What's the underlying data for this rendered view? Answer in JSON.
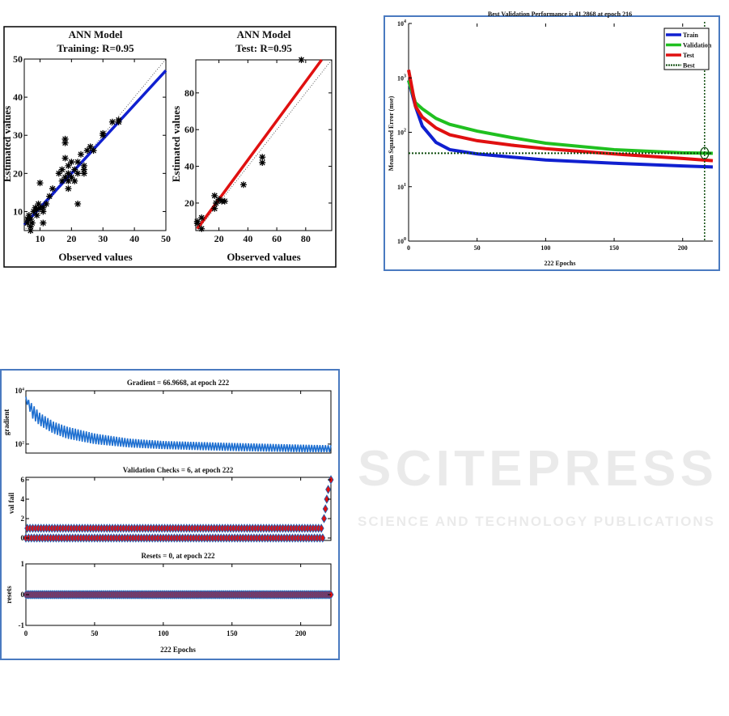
{
  "watermark": {
    "line1": "SCITEPRESS",
    "line2": "SCIENCE AND TECHNOLOGY PUBLICATIONS"
  },
  "colors": {
    "train": "#1020d0",
    "validation": "#20c020",
    "test": "#e01010",
    "best": "#0a4a0a",
    "gradient": "#1e6fd0",
    "marker_fill": "#e01010",
    "marker_edge": "#1a5fb4",
    "frame_blue": "#4a7ac0"
  },
  "chart_data": [
    {
      "type": "scatter",
      "title": "ANN Model",
      "subtitle": "Training: R=0.95",
      "xlabel": "Observed values",
      "ylabel": "Estimated values",
      "xlim": [
        5,
        50
      ],
      "ylim": [
        5,
        50
      ],
      "xticks": [
        "10",
        "20",
        "30",
        "40",
        "50"
      ],
      "yticks": [
        "10",
        "20",
        "30",
        "40",
        "50"
      ],
      "xtick_values": [
        10,
        20,
        30,
        40,
        50
      ],
      "ytick_values": [
        10,
        20,
        30,
        40,
        50
      ],
      "fit_line": [
        [
          5,
          6.5
        ],
        [
          50,
          47
        ]
      ],
      "points": [
        [
          6,
          7
        ],
        [
          6,
          8
        ],
        [
          6.5,
          9
        ],
        [
          7,
          6
        ],
        [
          7,
          5
        ],
        [
          7,
          8
        ],
        [
          7.5,
          7
        ],
        [
          8,
          10
        ],
        [
          8.5,
          11
        ],
        [
          9,
          10.5
        ],
        [
          9,
          9
        ],
        [
          9.5,
          12
        ],
        [
          10,
          11
        ],
        [
          10,
          17.5
        ],
        [
          11,
          10
        ],
        [
          11,
          11
        ],
        [
          11,
          7
        ],
        [
          12,
          12
        ],
        [
          13,
          14
        ],
        [
          14,
          16
        ],
        [
          16,
          20
        ],
        [
          17,
          21
        ],
        [
          17,
          18
        ],
        [
          18,
          19
        ],
        [
          18,
          28
        ],
        [
          18,
          29
        ],
        [
          18,
          24
        ],
        [
          19,
          16
        ],
        [
          19,
          20
        ],
        [
          19,
          18
        ],
        [
          19,
          22
        ],
        [
          20,
          19
        ],
        [
          20,
          23
        ],
        [
          21,
          21
        ],
        [
          21,
          18
        ],
        [
          22,
          12
        ],
        [
          22,
          23
        ],
        [
          22,
          20
        ],
        [
          23,
          25
        ],
        [
          24,
          22
        ],
        [
          24,
          21
        ],
        [
          24,
          20
        ],
        [
          25,
          26
        ],
        [
          26,
          27
        ],
        [
          27,
          26
        ],
        [
          30,
          30
        ],
        [
          30,
          30.5
        ],
        [
          33,
          33.5
        ],
        [
          35,
          33.5
        ],
        [
          35,
          34
        ]
      ],
      "marker": "asterisk"
    },
    {
      "type": "scatter",
      "title": "ANN Model",
      "subtitle": "Test: R=0.95",
      "xlabel": "Observed values",
      "ylabel": "Estimated values",
      "xlim": [
        4,
        98
      ],
      "ylim": [
        5,
        98
      ],
      "xticks": [
        "20",
        "40",
        "60",
        "80"
      ],
      "yticks": [
        "20",
        "40",
        "60",
        "80"
      ],
      "xtick_values": [
        20,
        40,
        60,
        80
      ],
      "ytick_values": [
        20,
        40,
        60,
        80
      ],
      "fit_line": [
        [
          5,
          6
        ],
        [
          91,
          98
        ]
      ],
      "points": [
        [
          5,
          10
        ],
        [
          5,
          9
        ],
        [
          8,
          12
        ],
        [
          8,
          6
        ],
        [
          17,
          24
        ],
        [
          17,
          17
        ],
        [
          18,
          20
        ],
        [
          20,
          22
        ],
        [
          22,
          21
        ],
        [
          24,
          21
        ],
        [
          37,
          30
        ],
        [
          50,
          45
        ],
        [
          50,
          42
        ],
        [
          77,
          98
        ]
      ],
      "marker": "asterisk"
    },
    {
      "type": "line",
      "title": "Best Validation Performance is 41.2868 at epoch 216",
      "xlabel": "222 Epochs",
      "ylabel": "Mean Squared Error  (mse)",
      "yscale": "log",
      "xlim": [
        0,
        222
      ],
      "ylim": [
        1,
        10000
      ],
      "xticks": [
        "0",
        "50",
        "100",
        "150",
        "200"
      ],
      "xtick_values": [
        0,
        50,
        100,
        150,
        200
      ],
      "yticks": [
        {
          "base": "10",
          "exp": "0"
        },
        {
          "base": "10",
          "exp": "1"
        },
        {
          "base": "10",
          "exp": "2"
        },
        {
          "base": "10",
          "exp": "3"
        },
        {
          "base": "10",
          "exp": "4"
        }
      ],
      "ytick_values": [
        1,
        10,
        100,
        1000,
        10000
      ],
      "x": [
        0,
        5,
        10,
        20,
        30,
        50,
        75,
        100,
        150,
        200,
        222
      ],
      "series": [
        {
          "name": "Train",
          "values": [
            900,
            300,
            130,
            65,
            48,
            40,
            35,
            31,
            27,
            24,
            23
          ]
        },
        {
          "name": "Validation",
          "values": [
            900,
            350,
            270,
            180,
            140,
            105,
            80,
            63,
            48,
            42,
            41
          ]
        },
        {
          "name": "Test",
          "values": [
            1400,
            300,
            190,
            120,
            90,
            70,
            58,
            50,
            40,
            33,
            30
          ]
        }
      ],
      "best": {
        "name": "Best",
        "value": 41.2868,
        "epoch": 216
      },
      "legend": "top-right"
    },
    {
      "type": "line",
      "title": "Gradient = 66.9668, at epoch 222",
      "ylabel": "gradient",
      "yscale": "log",
      "xlim": [
        0,
        222
      ],
      "ylim": [
        46,
        10000
      ],
      "yticks": [
        {
          "base": "10",
          "exp": "2"
        },
        {
          "base": "10",
          "exp": "4"
        }
      ],
      "ytick_values": [
        100,
        10000
      ],
      "x": [
        0,
        5,
        10,
        20,
        30,
        50,
        75,
        100,
        150,
        200,
        222
      ],
      "upper": [
        6000,
        3000,
        1500,
        700,
        450,
        250,
        160,
        130,
        110,
        95,
        90
      ],
      "lower": [
        4000,
        900,
        500,
        250,
        160,
        100,
        75,
        65,
        55,
        50,
        50
      ],
      "final": 66.9668
    },
    {
      "type": "scatter",
      "title": "Validation Checks = 6, at epoch 222",
      "ylabel": "val fail",
      "xlim": [
        0,
        222
      ],
      "ylim": [
        0,
        6
      ],
      "yticks": [
        "0",
        "2",
        "4",
        "6"
      ],
      "ytick_values": [
        0,
        2,
        4,
        6
      ],
      "base_pattern": [
        0,
        1
      ],
      "base_until_epoch": 216,
      "tail": [
        [
          217,
          2
        ],
        [
          218,
          3
        ],
        [
          219,
          4
        ],
        [
          220,
          5
        ],
        [
          222,
          6
        ]
      ],
      "marker": "diamond"
    },
    {
      "type": "scatter",
      "title": "Resets = 0, at epoch 222",
      "ylabel": "resets",
      "xlabel": "222 Epochs",
      "xlim": [
        0,
        222
      ],
      "ylim": [
        -1,
        1
      ],
      "xticks": [
        "0",
        "50",
        "100",
        "150",
        "200"
      ],
      "xtick_values": [
        0,
        50,
        100,
        150,
        200
      ],
      "yticks": [
        "-1",
        "0",
        "1"
      ],
      "ytick_values": [
        -1,
        0,
        1
      ],
      "value": 0,
      "marker": "diamond"
    }
  ]
}
